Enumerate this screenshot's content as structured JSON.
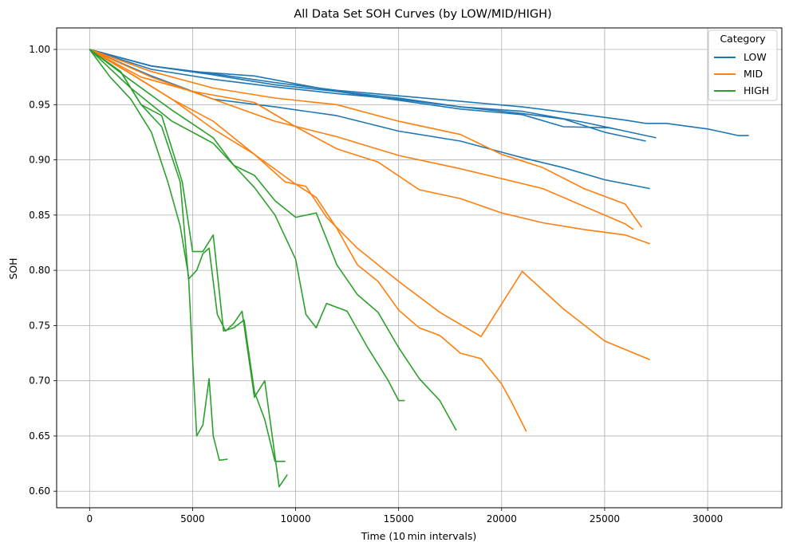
{
  "colors": {
    "LOW": "#1f77b4",
    "MID": "#ff7f0e",
    "HIGH": "#2ca02c",
    "grid": "#b0b0b0"
  },
  "chart_data": {
    "type": "line",
    "title": "All Data Set SOH Curves (by LOW/MID/HIGH)",
    "xlabel": "Time (10 min intervals)",
    "ylabel": "SOH",
    "xlim": [
      -1600,
      33600
    ],
    "ylim": [
      0.585,
      1.0195
    ],
    "xticks": [
      0,
      5000,
      10000,
      15000,
      20000,
      25000,
      30000
    ],
    "xtick_labels": [
      "0",
      "5000",
      "10000",
      "15000",
      "20000",
      "25000",
      "30000"
    ],
    "yticks": [
      0.6,
      0.65,
      0.7,
      0.75,
      0.8,
      0.85,
      0.9,
      0.95,
      1.0
    ],
    "ytick_labels": [
      "0.60",
      "0.65",
      "0.70",
      "0.75",
      "0.80",
      "0.85",
      "0.90",
      "0.95",
      "1.00"
    ],
    "grid": true,
    "legend": {
      "title": "Category",
      "position": "top-right",
      "entries": [
        "LOW",
        "MID",
        "HIGH"
      ]
    },
    "series": [
      {
        "category": "LOW",
        "x": [
          0,
          3000,
          6000,
          9000,
          12000,
          15000,
          18000,
          21000,
          24000,
          26000,
          27000,
          28000,
          30000,
          31500,
          32000
        ],
        "y": [
          1.0,
          0.985,
          0.978,
          0.97,
          0.963,
          0.958,
          0.953,
          0.948,
          0.941,
          0.936,
          0.933,
          0.933,
          0.928,
          0.922,
          0.922
        ]
      },
      {
        "category": "LOW",
        "x": [
          0,
          3000,
          6000,
          9000,
          12000,
          15000,
          18000,
          21000,
          24000,
          26000,
          27500
        ],
        "y": [
          1.0,
          0.985,
          0.977,
          0.968,
          0.962,
          0.956,
          0.948,
          0.944,
          0.934,
          0.926,
          0.92
        ]
      },
      {
        "category": "LOW",
        "x": [
          0,
          3000,
          6000,
          9000,
          12000,
          15000,
          18000,
          21000,
          23000,
          25000,
          27000
        ],
        "y": [
          1.0,
          0.982,
          0.973,
          0.966,
          0.96,
          0.955,
          0.948,
          0.942,
          0.937,
          0.925,
          0.917
        ]
      },
      {
        "category": "LOW",
        "x": [
          0,
          3000,
          5000,
          8000,
          12000,
          15000,
          18000,
          21000,
          23000,
          25300
        ],
        "y": [
          1.0,
          0.985,
          0.98,
          0.976,
          0.962,
          0.954,
          0.946,
          0.941,
          0.93,
          0.929
        ]
      },
      {
        "category": "LOW",
        "x": [
          0,
          3000,
          6000,
          9000,
          12000,
          15000,
          18000,
          21000,
          23000,
          25000,
          27200
        ],
        "y": [
          1.0,
          0.976,
          0.955,
          0.948,
          0.94,
          0.926,
          0.917,
          0.902,
          0.893,
          0.882,
          0.874
        ]
      },
      {
        "category": "MID",
        "x": [
          0,
          3000,
          6000,
          9000,
          12000,
          15000,
          18000,
          20000,
          22000,
          24000,
          26000,
          26800
        ],
        "y": [
          1.0,
          0.98,
          0.965,
          0.956,
          0.95,
          0.935,
          0.923,
          0.905,
          0.893,
          0.874,
          0.86,
          0.839
        ]
      },
      {
        "category": "MID",
        "x": [
          0,
          3000,
          6000,
          9000,
          12000,
          15000,
          18000,
          20000,
          22000,
          24000,
          26000,
          26400
        ],
        "y": [
          1.0,
          0.975,
          0.955,
          0.935,
          0.921,
          0.904,
          0.892,
          0.883,
          0.874,
          0.858,
          0.842,
          0.837
        ]
      },
      {
        "category": "MID",
        "x": [
          0,
          2500,
          5000,
          8000,
          10000,
          12000,
          14000,
          16000,
          18000,
          20000,
          22000,
          24000,
          26000,
          27200
        ],
        "y": [
          1.0,
          0.975,
          0.962,
          0.952,
          0.93,
          0.91,
          0.898,
          0.873,
          0.865,
          0.852,
          0.843,
          0.837,
          0.832,
          0.824
        ]
      },
      {
        "category": "MID",
        "x": [
          0,
          2000,
          4000,
          6000,
          8000,
          9500,
          10500,
          11500,
          13000,
          15000,
          17000,
          19000,
          21000,
          23000,
          25000,
          27200
        ],
        "y": [
          1.0,
          0.978,
          0.955,
          0.928,
          0.905,
          0.88,
          0.876,
          0.848,
          0.82,
          0.79,
          0.762,
          0.74,
          0.799,
          0.765,
          0.736,
          0.719
        ]
      },
      {
        "category": "MID",
        "x": [
          0,
          2000,
          4000,
          6000,
          8000,
          10000,
          11000,
          12000,
          13000,
          14000,
          15000,
          16000,
          17000,
          18000,
          19000,
          20000,
          20500,
          21200
        ],
        "y": [
          1.0,
          0.978,
          0.955,
          0.935,
          0.905,
          0.878,
          0.866,
          0.838,
          0.805,
          0.79,
          0.764,
          0.748,
          0.741,
          0.725,
          0.72,
          0.697,
          0.68,
          0.654
        ]
      },
      {
        "category": "HIGH",
        "x": [
          0,
          2000,
          4000,
          6000,
          7000,
          8000,
          9000,
          10000,
          11000,
          12000,
          13000,
          14000,
          15000,
          16000,
          17000,
          17800
        ],
        "y": [
          1.0,
          0.972,
          0.945,
          0.92,
          0.895,
          0.886,
          0.863,
          0.848,
          0.852,
          0.805,
          0.778,
          0.762,
          0.73,
          0.702,
          0.682,
          0.655
        ]
      },
      {
        "category": "HIGH",
        "x": [
          0,
          2000,
          4000,
          6000,
          7000,
          8000,
          9000,
          10000,
          10500,
          11000,
          11500,
          12500,
          13500,
          14500,
          15000,
          15300
        ],
        "y": [
          1.0,
          0.965,
          0.935,
          0.915,
          0.895,
          0.875,
          0.85,
          0.81,
          0.76,
          0.748,
          0.77,
          0.763,
          0.73,
          0.7,
          0.682,
          0.682
        ]
      },
      {
        "category": "HIGH",
        "x": [
          0,
          1500,
          2500,
          3500,
          4500,
          5000,
          5500,
          6000,
          6500,
          7000,
          7500,
          8000,
          8500,
          9000,
          9500
        ],
        "y": [
          1.0,
          0.98,
          0.95,
          0.94,
          0.88,
          0.817,
          0.817,
          0.832,
          0.745,
          0.748,
          0.755,
          0.69,
          0.665,
          0.627,
          0.627
        ]
      },
      {
        "category": "HIGH",
        "x": [
          0,
          1500,
          2500,
          3500,
          4400,
          4800,
          5200,
          5500,
          5800,
          6200,
          6600,
          7000,
          7400,
          8000,
          8500,
          9200,
          9600
        ],
        "y": [
          1.0,
          0.98,
          0.95,
          0.93,
          0.88,
          0.792,
          0.8,
          0.815,
          0.82,
          0.76,
          0.745,
          0.752,
          0.763,
          0.685,
          0.7,
          0.604,
          0.615
        ]
      },
      {
        "category": "HIGH",
        "x": [
          0,
          1000,
          2000,
          3000,
          3800,
          4400,
          4800,
          5000,
          5200,
          5500,
          5800,
          6000,
          6300,
          6700
        ],
        "y": [
          1.0,
          0.975,
          0.955,
          0.925,
          0.88,
          0.84,
          0.795,
          0.72,
          0.65,
          0.66,
          0.702,
          0.65,
          0.628,
          0.629
        ]
      }
    ]
  }
}
